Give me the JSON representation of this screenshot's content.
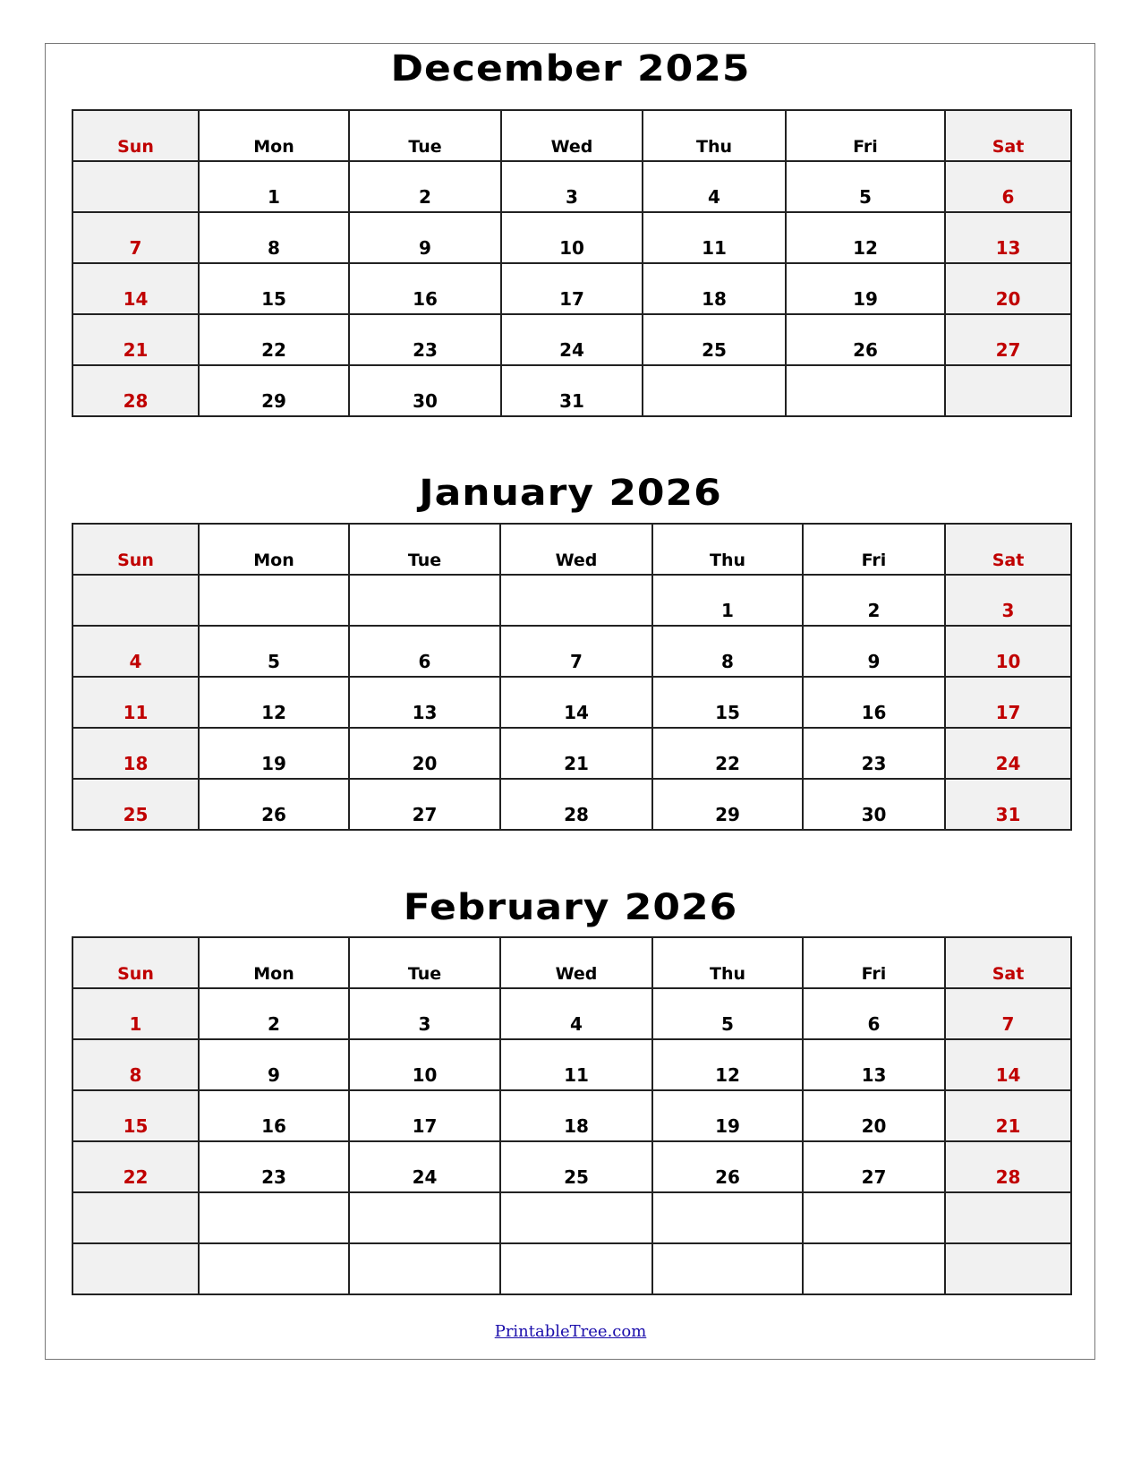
{
  "colors": {
    "weekend_text": "#c00000",
    "weekend_bg": "#f1f1f1",
    "link": "#1a0dab"
  },
  "weekdays": [
    "Sun",
    "Mon",
    "Tue",
    "Wed",
    "Thu",
    "Fri",
    "Sat"
  ],
  "months": [
    {
      "title": "December 2025",
      "weeks": [
        [
          "",
          "1",
          "2",
          "3",
          "4",
          "5",
          "6"
        ],
        [
          "7",
          "8",
          "9",
          "10",
          "11",
          "12",
          "13"
        ],
        [
          "14",
          "15",
          "16",
          "17",
          "18",
          "19",
          "20"
        ],
        [
          "21",
          "22",
          "23",
          "24",
          "25",
          "26",
          "27"
        ],
        [
          "28",
          "29",
          "30",
          "31",
          "",
          "",
          ""
        ]
      ]
    },
    {
      "title": "January 2026",
      "weeks": [
        [
          "",
          "",
          "",
          "",
          "1",
          "2",
          "3"
        ],
        [
          "4",
          "5",
          "6",
          "7",
          "8",
          "9",
          "10"
        ],
        [
          "11",
          "12",
          "13",
          "14",
          "15",
          "16",
          "17"
        ],
        [
          "18",
          "19",
          "20",
          "21",
          "22",
          "23",
          "24"
        ],
        [
          "25",
          "26",
          "27",
          "28",
          "29",
          "30",
          "31"
        ]
      ]
    },
    {
      "title": "February 2026",
      "weeks": [
        [
          "1",
          "2",
          "3",
          "4",
          "5",
          "6",
          "7"
        ],
        [
          "8",
          "9",
          "10",
          "11",
          "12",
          "13",
          "14"
        ],
        [
          "15",
          "16",
          "17",
          "18",
          "19",
          "20",
          "21"
        ],
        [
          "22",
          "23",
          "24",
          "25",
          "26",
          "27",
          "28"
        ],
        [
          "",
          "",
          "",
          "",
          "",
          "",
          ""
        ],
        [
          "",
          "",
          "",
          "",
          "",
          "",
          ""
        ]
      ]
    }
  ],
  "footer": {
    "link_text": "PrintableTree.com"
  }
}
